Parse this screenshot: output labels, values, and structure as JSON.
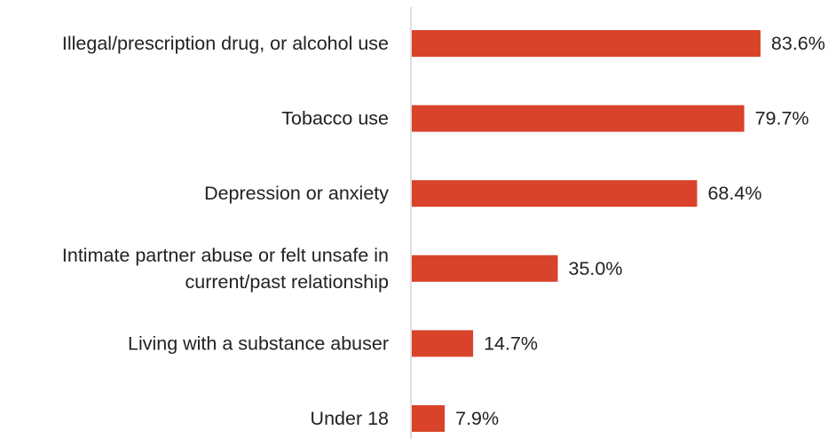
{
  "chart_data": {
    "type": "bar",
    "orientation": "horizontal",
    "categories": [
      [
        "Illegal/prescription drug, or alcohol use"
      ],
      [
        "Tobacco use"
      ],
      [
        "Depression or anxiety"
      ],
      [
        "Intimate partner abuse or felt unsafe in",
        "current/past relationship"
      ],
      [
        "Living with a substance abuser"
      ],
      [
        "Under 18"
      ]
    ],
    "values": [
      83.6,
      79.7,
      68.4,
      35.0,
      14.7,
      7.9
    ],
    "value_labels": [
      "83.6%",
      "79.7%",
      "68.4%",
      "35.0%",
      "14.7%",
      "7.9%"
    ],
    "xlim": [
      0,
      100
    ],
    "grid": false,
    "legend": "none",
    "bar_color": "#d9432a",
    "axis_color": "#c8c8c8"
  }
}
